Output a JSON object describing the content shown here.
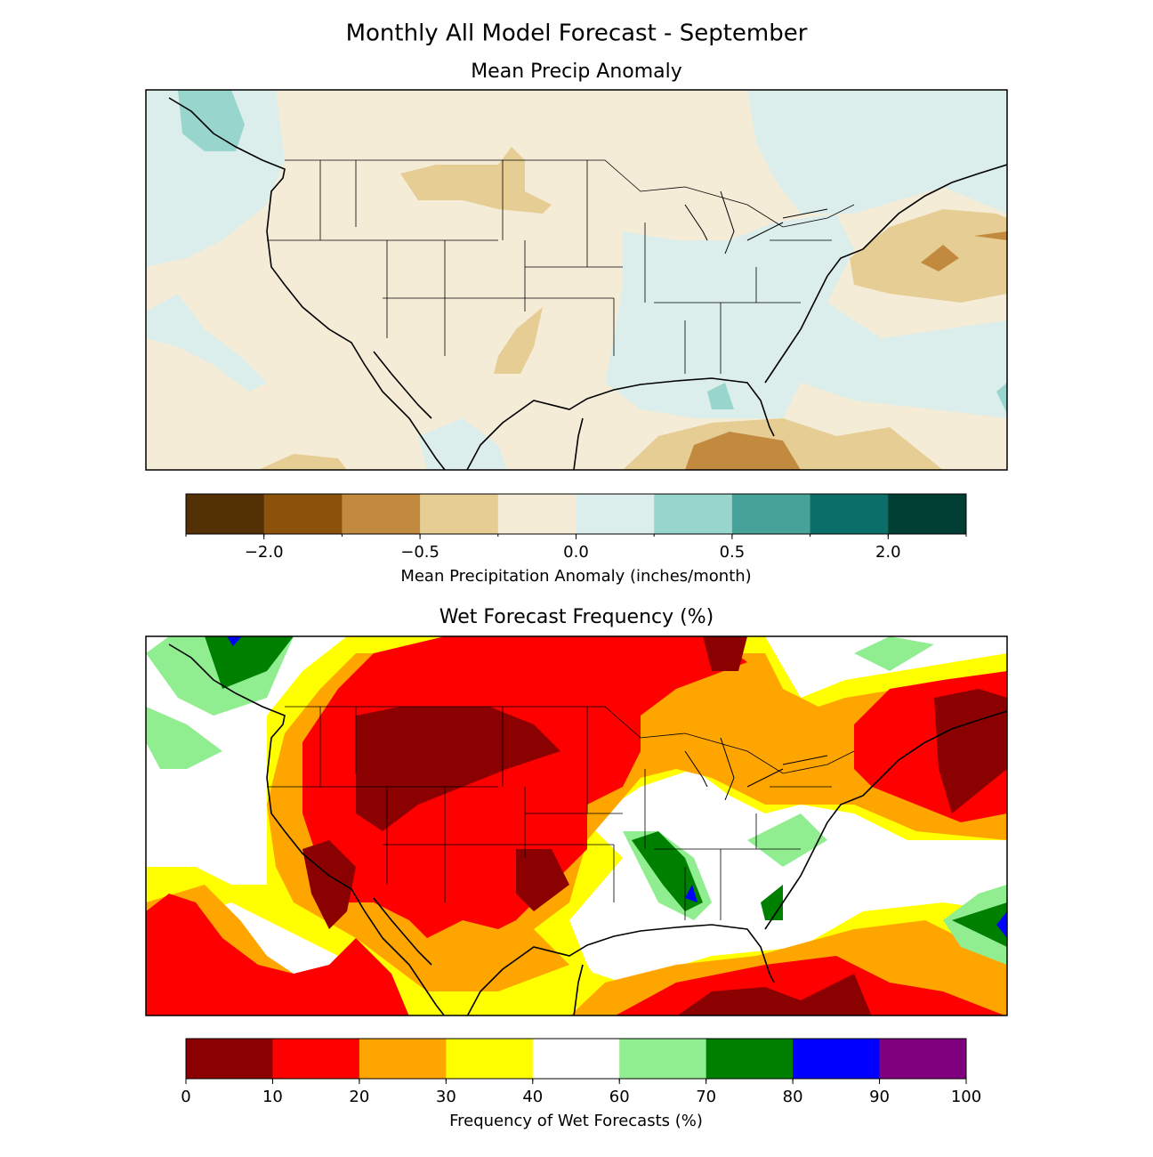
{
  "title": "Monthly All Model Forecast - September",
  "panels": [
    {
      "title": "Mean Precip Anomaly",
      "colorbar": {
        "label": "Mean Precipitation Anomaly (inches/month)",
        "colors": [
          "#543005",
          "#8c510a",
          "#c28a3f",
          "#e6cd94",
          "#f5ecd8",
          "#dbeeeb",
          "#98d5cc",
          "#47a399",
          "#0b6e68",
          "#003d33"
        ],
        "levels": [
          -3,
          -2,
          -1,
          -0.5,
          -0.25,
          0,
          0.25,
          0.5,
          1,
          2,
          3
        ],
        "ticks": [
          {
            "value": -2,
            "label": "−2.0"
          },
          {
            "value": -0.5,
            "label": "−0.5"
          },
          {
            "value": 0,
            "label": "0.0"
          },
          {
            "value": 0.5,
            "label": "0.5"
          },
          {
            "value": 2,
            "label": "2.0"
          }
        ]
      }
    },
    {
      "title": "Wet Forecast Frequency (%)",
      "colorbar": {
        "label": "Frequency of Wet Forecasts (%)",
        "colors": [
          "#8b0000",
          "#ff0000",
          "#ffa500",
          "#ffff00",
          "#ffffff",
          "#90ee90",
          "#008000",
          "#0000ff",
          "#800080"
        ],
        "levels": [
          0,
          10,
          20,
          30,
          40,
          60,
          70,
          80,
          90,
          100
        ],
        "ticks": [
          0,
          10,
          20,
          30,
          40,
          60,
          70,
          80,
          90,
          100
        ]
      }
    }
  ]
}
